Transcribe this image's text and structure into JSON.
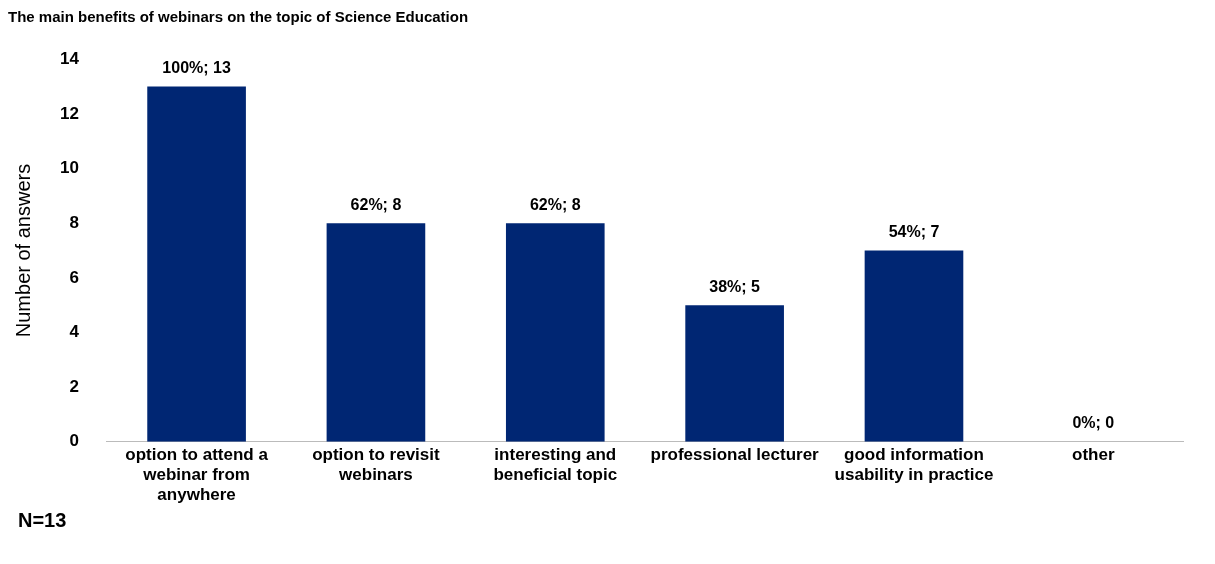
{
  "chart_data": {
    "type": "bar",
    "title": "The main benefits of webinars on the topic of Science Education",
    "ylabel": "Number of answers",
    "categories": [
      "option to attend a webinar from anywhere",
      "option to revisit webinars",
      "interesting and beneficial topic",
      "professional lecturer",
      "good information usability in practice",
      "other"
    ],
    "values": [
      13,
      8,
      8,
      5,
      7,
      0
    ],
    "color": "#002673",
    "value_labels": [
      "100%; 13",
      "62%; 8",
      "62%; 8",
      "38%; 5",
      "54%; 7",
      "0%; 0"
    ],
    "ylim": [
      0,
      14
    ],
    "yticks": [
      0,
      2,
      4,
      6,
      8,
      10,
      12,
      14
    ],
    "grid": false,
    "legend": false,
    "annotations": [
      "N=13"
    ]
  }
}
